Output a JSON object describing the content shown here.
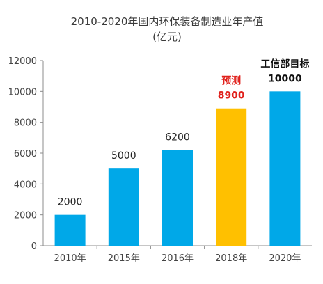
{
  "chart_data": {
    "type": "bar",
    "title": "2010-2020年国内环保装备制造业年产值",
    "subtitle": "(亿元)",
    "categories": [
      "2010年",
      "2015年",
      "2016年",
      "2018年",
      "2020年"
    ],
    "values": [
      2000,
      5000,
      6200,
      8900,
      10000
    ],
    "value_labels": [
      "2000",
      "5000",
      "6200",
      "8900",
      "10000"
    ],
    "annotations": [
      "",
      "",
      "",
      "预测",
      "工信部目标"
    ],
    "bar_colors": [
      "#00a8e8",
      "#00a8e8",
      "#00a8e8",
      "#ffc000",
      "#00a8e8"
    ],
    "label_colors": [
      "#222222",
      "#222222",
      "#222222",
      "#e0201b",
      "#111111"
    ],
    "label_bold": [
      false,
      false,
      false,
      true,
      true
    ],
    "ylim": [
      0,
      12000
    ],
    "yticks": [
      0,
      2000,
      4000,
      6000,
      8000,
      10000,
      12000
    ],
    "grid": false,
    "legend": "none"
  }
}
